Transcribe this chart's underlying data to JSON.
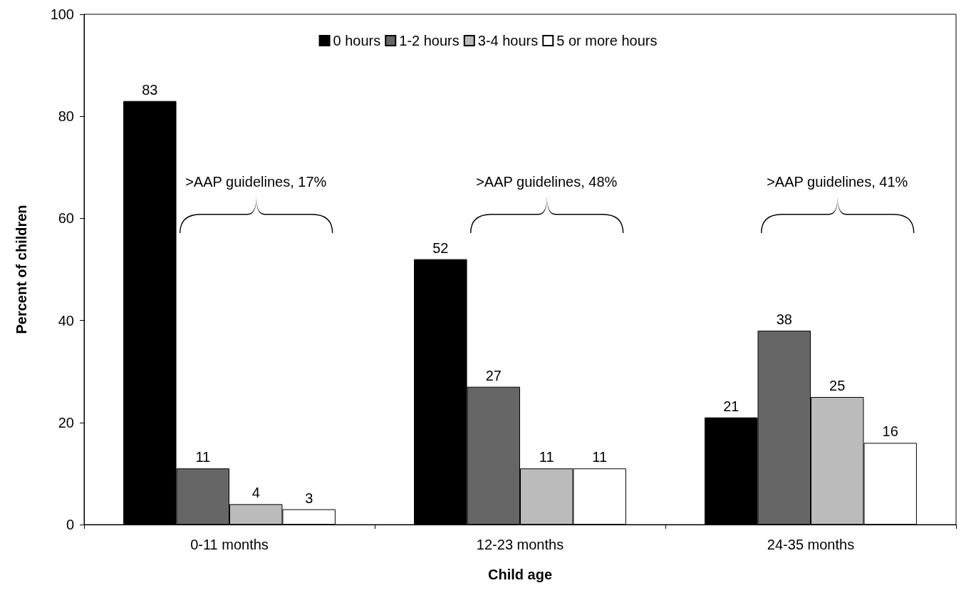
{
  "chart_data": {
    "type": "bar",
    "xlabel": "Child age",
    "ylabel": "Percent of children",
    "categories": [
      "0-11 months",
      "12-23 months",
      "24-35 months"
    ],
    "series": [
      {
        "name": "0 hours",
        "color": "#000000",
        "values": [
          83,
          52,
          21
        ]
      },
      {
        "name": "1-2 hours",
        "color": "#666666",
        "values": [
          11,
          27,
          38
        ]
      },
      {
        "name": "3-4 hours",
        "color": "#bbbbbb",
        "values": [
          4,
          11,
          25
        ]
      },
      {
        "name": "5 or more hours",
        "color": "#ffffff",
        "values": [
          3,
          11,
          16
        ]
      }
    ],
    "ylim": [
      0,
      100
    ],
    "yticks": [
      0,
      20,
      40,
      60,
      80,
      100
    ],
    "grid": false,
    "legend": "top",
    "data_labels": true,
    "annotations": [
      ">AAP guidelines, 17%",
      ">AAP guidelines, 48%",
      ">AAP guidelines, 41%"
    ]
  }
}
